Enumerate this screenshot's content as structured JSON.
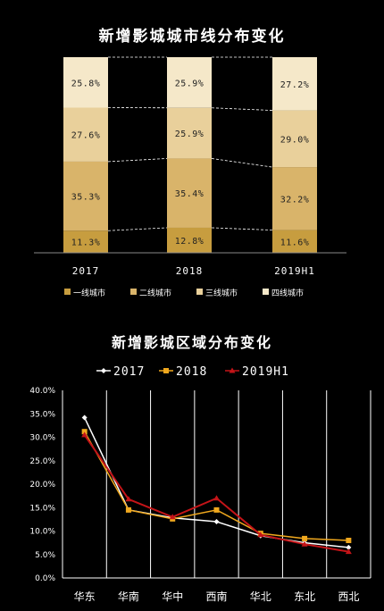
{
  "colors": {
    "tier1": "#c79d3f",
    "tier2": "#d9b46a",
    "tier3": "#e9d09b",
    "tier4": "#f5e8c9",
    "line2017": "#ffffff",
    "line2018": "#f0a81e",
    "line2019": "#c41418"
  },
  "charts": [
    {
      "type": "bar",
      "title": "新增影城城市线分布变化",
      "categories": [
        "2017",
        "2018",
        "2019H1"
      ],
      "series": [
        {
          "name": "一线城市",
          "values": [
            "11.3%",
            "12.8%",
            "11.6%"
          ]
        },
        {
          "name": "二线城市",
          "values": [
            "35.3%",
            "35.4%",
            "32.2%"
          ]
        },
        {
          "name": "三线城市",
          "values": [
            "27.6%",
            "25.9%",
            "29.0%"
          ]
        },
        {
          "name": "四线城市",
          "values": [
            "25.8%",
            "25.9%",
            "27.2%"
          ]
        }
      ]
    },
    {
      "type": "line",
      "title": "新增影城区域分布变化",
      "categories": [
        "华东",
        "华南",
        "华中",
        "西南",
        "华北",
        "东北",
        "西北"
      ],
      "y_ticks": [
        "0.0%",
        "5.0%",
        "10.0%",
        "15.0%",
        "20.0%",
        "25.0%",
        "30.0%",
        "35.0%",
        "40.0%"
      ],
      "ylim": [
        0,
        40
      ],
      "series": [
        {
          "name": "2017",
          "values": [
            34.2,
            14.5,
            12.8,
            12.0,
            9.0,
            7.5,
            6.5
          ]
        },
        {
          "name": "2018",
          "values": [
            31.2,
            14.5,
            12.6,
            14.5,
            9.5,
            8.4,
            8.0
          ]
        },
        {
          "name": "2019H1",
          "values": [
            30.5,
            16.8,
            13.0,
            17.0,
            9.2,
            7.2,
            5.6
          ]
        }
      ]
    }
  ]
}
